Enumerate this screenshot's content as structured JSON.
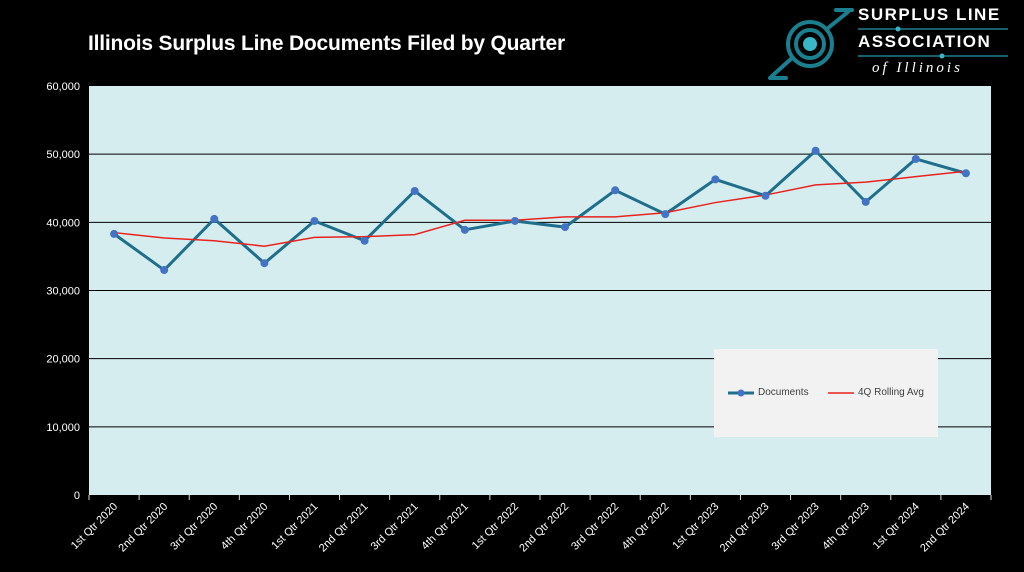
{
  "title": "Illinois Surplus Line Documents Filed by Quarter",
  "logo": {
    "line1": "SURPLUS LINE",
    "line2": "ASSOCIATION",
    "line3": "of Illinois"
  },
  "colors": {
    "background": "#000000",
    "plot_area": "#d6edf0",
    "documents_line": "#1f6e8c",
    "documents_marker": "#4472c4",
    "rolling_avg_line": "#e8231e",
    "gridline": "#000000",
    "logo_accent": "#1a7f8e"
  },
  "chart_data": {
    "type": "line",
    "title": "Illinois Surplus Line Documents Filed by Quarter",
    "xlabel": "",
    "ylabel": "",
    "ylim": [
      0,
      60000
    ],
    "yticks": [
      0,
      10000,
      20000,
      30000,
      40000,
      50000,
      60000
    ],
    "ytick_labels": [
      "0",
      "10,000",
      "20,000",
      "30,000",
      "40,000",
      "50,000",
      "60,000"
    ],
    "grid": true,
    "legend_position": "bottom-right",
    "categories": [
      "1st Qtr 2020",
      "2nd Qtr 2020",
      "3rd Qtr 2020",
      "4th Qtr 2020",
      "1st Qtr 2021",
      "2nd Qtr 2021",
      "3rd Qtr 2021",
      "4th Qtr 2021",
      "1st Qtr 2022",
      "2nd Qtr 2022",
      "3rd Qtr 2022",
      "4th Qtr 2022",
      "1st Qtr 2023",
      "2nd Qtr 2023",
      "3rd Qtr 2023",
      "4th Qtr 2023",
      "1st Qtr 2024",
      "2nd Qtr 2024"
    ],
    "series": [
      {
        "name": "Documents",
        "values": [
          38300,
          33000,
          40500,
          34000,
          40200,
          37300,
          44600,
          38900,
          40200,
          39300,
          44700,
          41200,
          46300,
          43900,
          50500,
          43000,
          49300,
          47200
        ]
      },
      {
        "name": "4Q Rolling Avg",
        "values": [
          38500,
          37700,
          37300,
          36500,
          37800,
          37900,
          38200,
          40300,
          40300,
          40800,
          40800,
          41400,
          42900,
          44000,
          45500,
          45900,
          46700,
          47500
        ]
      }
    ]
  }
}
